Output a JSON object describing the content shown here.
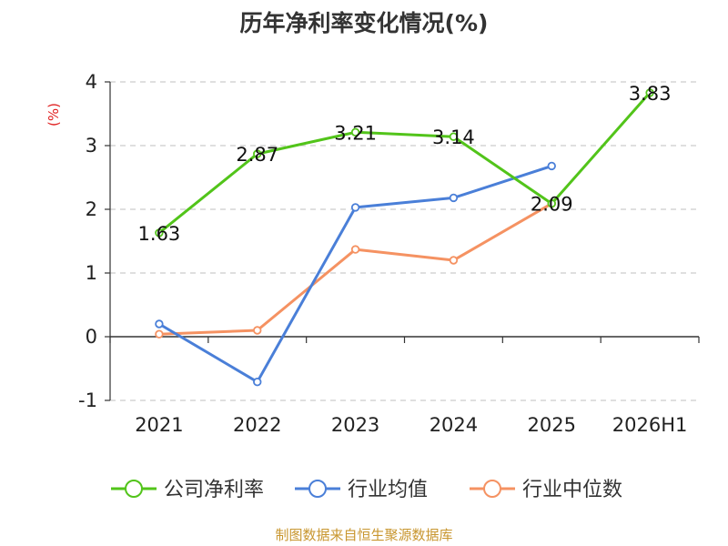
{
  "chart_data": {
    "type": "line",
    "title": "历年净利率变化情况(%)",
    "ylabel": "(%)",
    "categories": [
      "2021",
      "2022",
      "2023",
      "2024",
      "2025",
      "2026H1"
    ],
    "ylim": [
      -1,
      4
    ],
    "yticks": [
      "4",
      "3",
      "2",
      "1",
      "0",
      "-1"
    ],
    "grid": true,
    "legend_position": "bottom",
    "series": [
      {
        "name": "公司净利率",
        "color": "#52c41a",
        "values": [
          1.63,
          2.87,
          3.21,
          3.14,
          2.09,
          3.83
        ],
        "labels": [
          "1.63",
          "2.87",
          "3.21",
          "3.14",
          "2.09",
          "3.83"
        ]
      },
      {
        "name": "行业均值",
        "color": "#4a7fd8",
        "values": [
          0.2,
          -0.71,
          2.03,
          2.18,
          2.68,
          null
        ]
      },
      {
        "name": "行业中位数",
        "color": "#f59262",
        "values": [
          0.04,
          0.1,
          1.37,
          1.2,
          2.09,
          null
        ]
      }
    ]
  },
  "unit_color": "#e02020",
  "source_note": "制图数据来自恒生聚源数据库"
}
